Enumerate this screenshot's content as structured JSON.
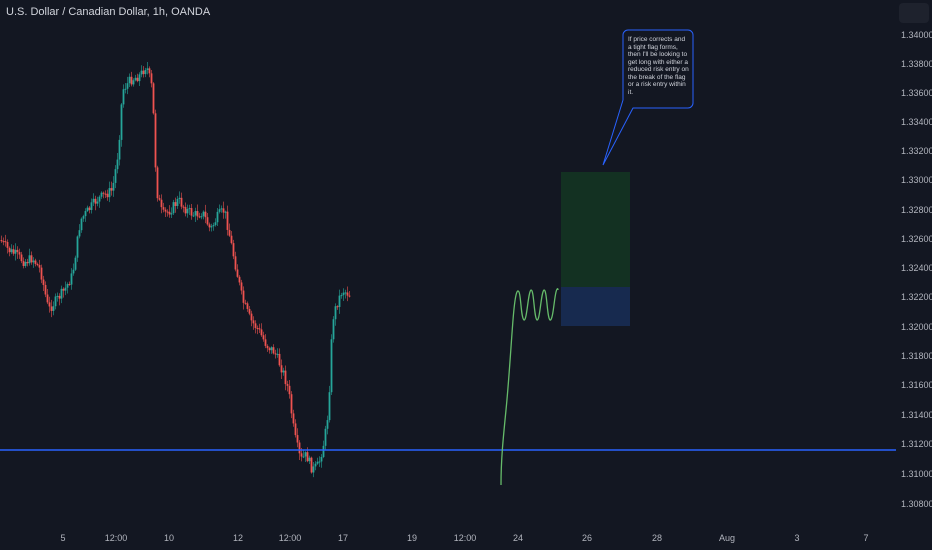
{
  "header": {
    "symbol_title": "U.S. Dollar / Canadian Dollar, 1h, OANDA"
  },
  "price_axis": {
    "labels": [
      "1.34000",
      "1.33800",
      "1.33600",
      "1.33400",
      "1.33200",
      "1.33000",
      "1.32800",
      "1.32600",
      "1.32400",
      "1.32200",
      "1.32000",
      "1.31800",
      "1.31600",
      "1.31400",
      "1.31200",
      "1.31000",
      "1.30800"
    ]
  },
  "time_axis": {
    "labels": [
      "5",
      "12:00",
      "10",
      "12",
      "12:00",
      "17",
      "19",
      "12:00",
      "24",
      "26",
      "28",
      "Aug",
      "3",
      "7"
    ]
  },
  "annotation": {
    "text": "If price corrects and a tight flag forms, then I'll be looking to get long with either a reduced risk entry on the break of the flag or a risk entry within it."
  },
  "colors": {
    "background": "#131722",
    "up_candle": "#26a69a",
    "down_candle": "#ef5350",
    "support_line": "#2962ff",
    "profit_zone": "#133122",
    "risk_zone": "#172a4f",
    "projection_path": "#66bb6a",
    "callout_border": "#2962ff"
  }
}
